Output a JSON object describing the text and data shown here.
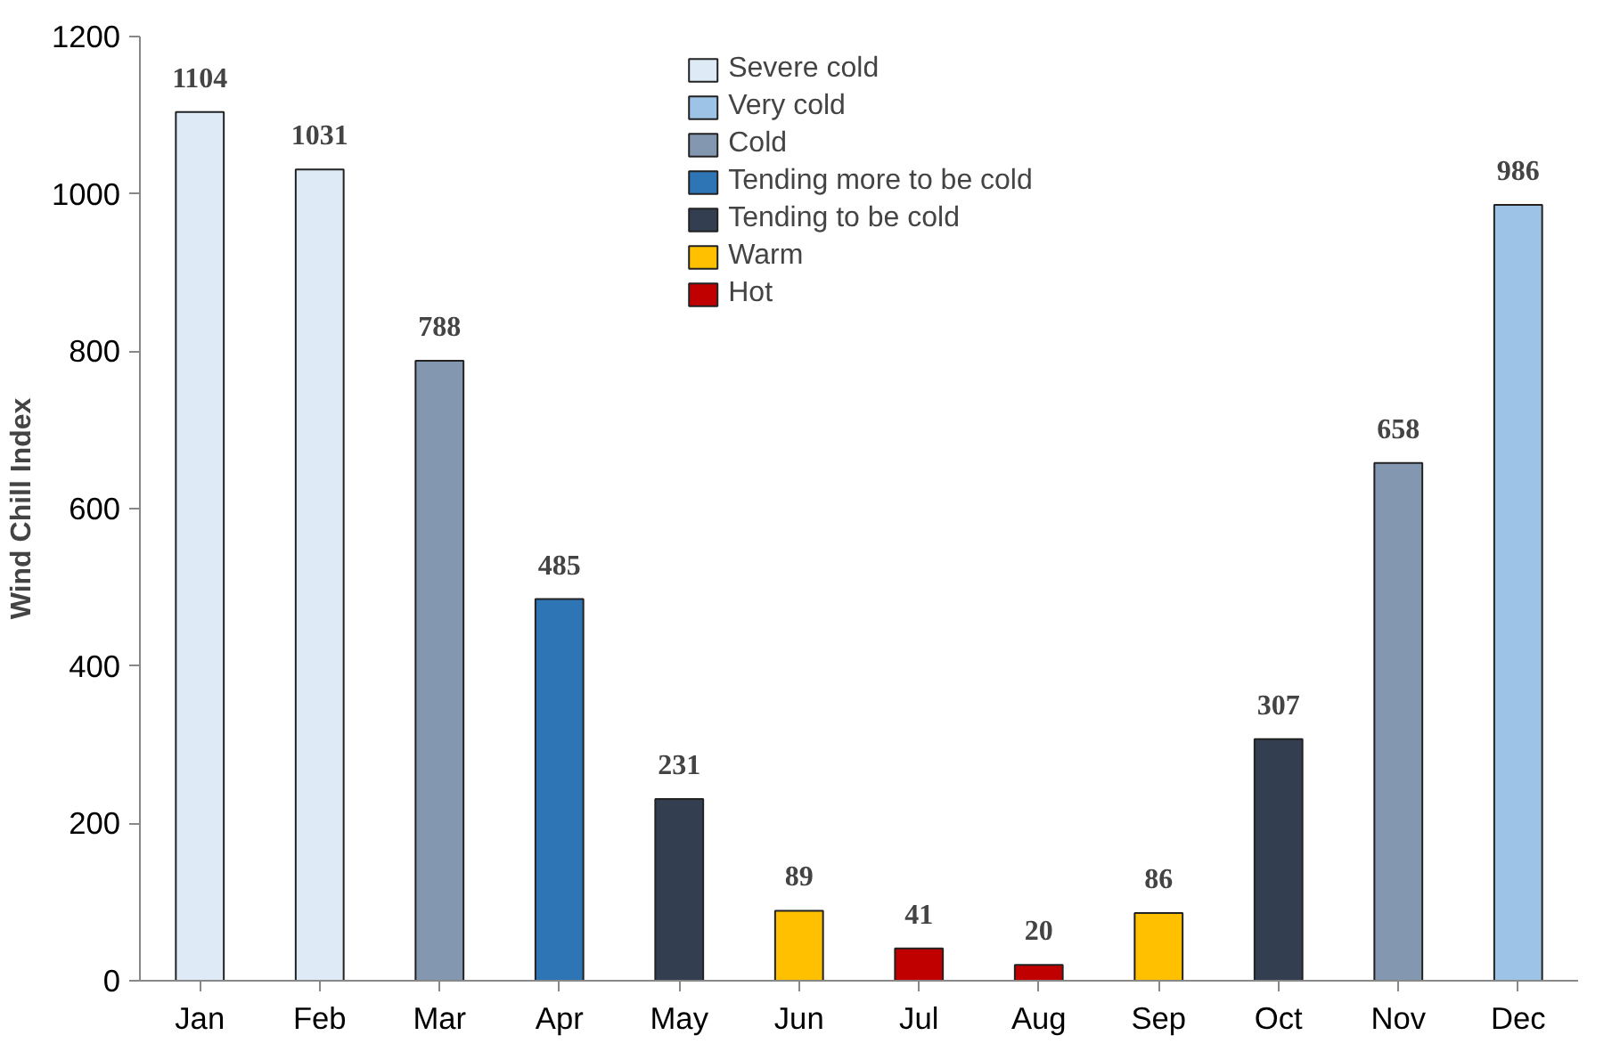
{
  "chart_data": {
    "type": "bar",
    "ylabel": "Wind Chill Index",
    "categories": [
      "Jan",
      "Feb",
      "Mar",
      "Apr",
      "May",
      "Jun",
      "Jul",
      "Aug",
      "Sep",
      "Oct",
      "Nov",
      "Dec"
    ],
    "series": [
      {
        "name": "Severe cold",
        "color": "#deebf7",
        "values": [
          1104,
          1031,
          null,
          null,
          null,
          null,
          null,
          null,
          null,
          null,
          null,
          null
        ]
      },
      {
        "name": "Very cold",
        "color": "#9dc3e6",
        "values": [
          null,
          null,
          null,
          null,
          null,
          null,
          null,
          null,
          null,
          null,
          null,
          986
        ]
      },
      {
        "name": "Cold",
        "color": "#8497b0",
        "values": [
          null,
          null,
          788,
          null,
          null,
          null,
          null,
          null,
          null,
          null,
          658,
          null
        ]
      },
      {
        "name": "Tending more to be cold",
        "color": "#2e75b6",
        "values": [
          null,
          null,
          null,
          485,
          null,
          null,
          null,
          null,
          null,
          null,
          null,
          null
        ]
      },
      {
        "name": "Tending to be cold",
        "color": "#333f50",
        "values": [
          null,
          null,
          null,
          null,
          231,
          null,
          null,
          null,
          null,
          307,
          null,
          null
        ]
      },
      {
        "name": "Warm",
        "color": "#ffc000",
        "values": [
          null,
          null,
          null,
          null,
          null,
          89,
          null,
          null,
          86,
          null,
          null,
          null
        ]
      },
      {
        "name": "Hot",
        "color": "#c00000",
        "values": [
          null,
          null,
          null,
          null,
          null,
          null,
          41,
          20,
          null,
          null,
          null,
          null
        ]
      }
    ],
    "ylim": [
      0,
      1200
    ],
    "yticks": [
      0,
      200,
      400,
      600,
      800,
      1000,
      1200
    ],
    "grid": false,
    "legend": "top",
    "data_labels": true
  }
}
